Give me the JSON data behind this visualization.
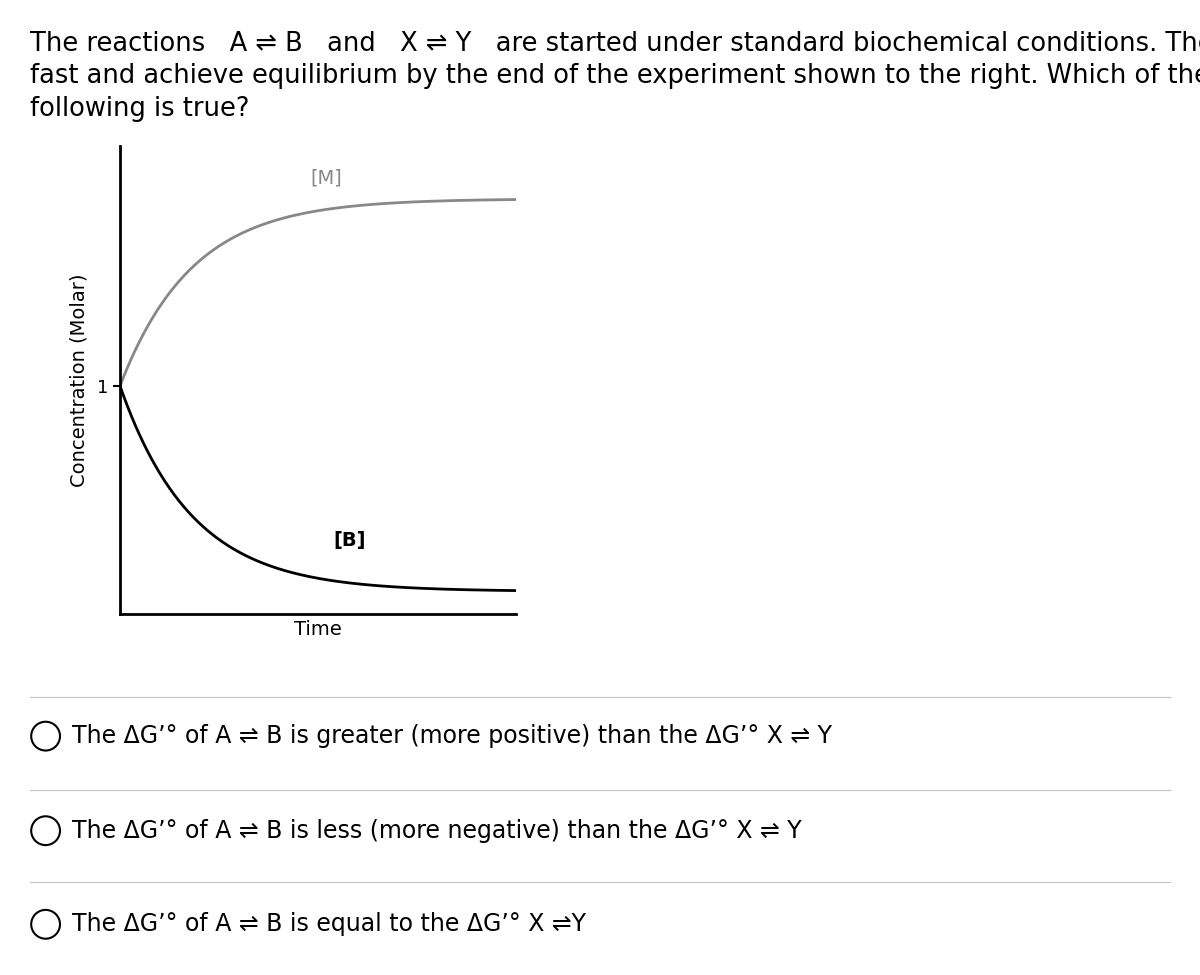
{
  "title_line1": "The reactions   A ⇌ B   and   X ⇌ Y   are started under standard biochemical conditions. They are",
  "title_line2": "fast and achieve equilibrium by the end of the experiment shown to the right. Which of the",
  "title_line3": "following is true?",
  "ylabel": "Concentration (Molar)",
  "xlabel": "Time",
  "curve_M_label": "[M]",
  "curve_B_label": "[B]",
  "curve_M_color": "#888888",
  "curve_B_color": "#000000",
  "bg_color": "#ffffff",
  "option1": "The ΔGʼ° of A ⇌ B is greater (more positive) than the ΔGʼ° X ⇌ Y",
  "option2": "The ΔGʼ° of A ⇌ B is less (more negative) than the ΔGʼ° X ⇌ Y",
  "option3": "The ΔGʼ° of A ⇌ B is equal to the ΔGʼ° X ⇌Y",
  "title_fontsize": 18.5,
  "option_fontsize": 17,
  "ylabel_fontsize": 14,
  "xlabel_fontsize": 14
}
